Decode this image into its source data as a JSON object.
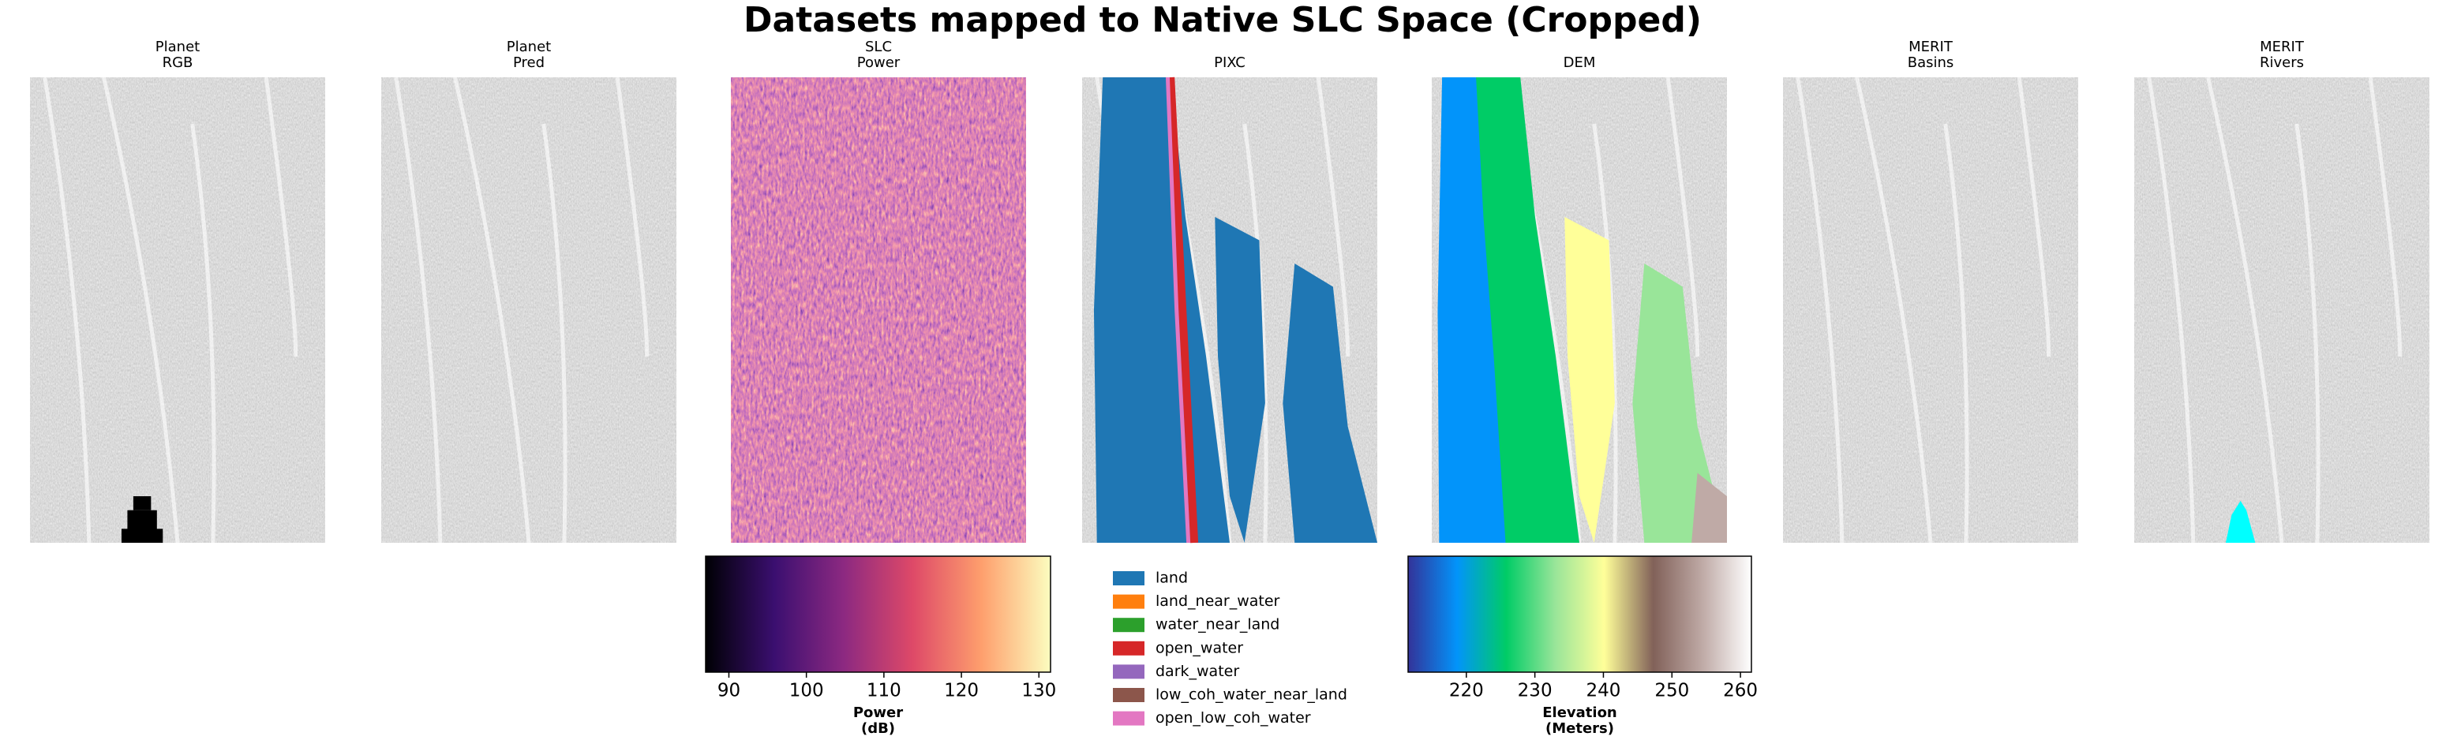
{
  "title": "Datasets mapped to Native SLC Space (Cropped)",
  "panels": [
    {
      "title": [
        "Planet",
        "RGB"
      ]
    },
    {
      "title": [
        "Planet",
        "Pred"
      ]
    },
    {
      "title": [
        "SLC",
        "Power"
      ]
    },
    {
      "title": [
        "PIXC"
      ]
    },
    {
      "title": [
        "DEM"
      ]
    },
    {
      "title": [
        "MERIT",
        "Basins"
      ]
    },
    {
      "title": [
        "MERIT",
        "Rivers"
      ]
    }
  ],
  "colorbars": [
    {
      "label": [
        "Power",
        "(dB)"
      ],
      "lim": [
        87,
        131.5
      ],
      "ticks": [
        90,
        100,
        110,
        120,
        130
      ],
      "colors": [
        "#000004",
        "#3b0f70",
        "#8c2981",
        "#de4968",
        "#fe9f6d",
        "#fcfdbf"
      ]
    },
    {
      "label": [
        "Elevation",
        "(Meters)"
      ],
      "lim": [
        211.5,
        261.6
      ],
      "ticks": [
        220,
        230,
        240,
        250,
        260
      ],
      "colors": [
        "#333399",
        "#0294fa",
        "#00cc66",
        "#99e599",
        "#ffff99",
        "#816159",
        "#bfaaa6",
        "#ffffff"
      ]
    }
  ],
  "legend": [
    {
      "name": "land",
      "color": "#1f77b4"
    },
    {
      "name": "land_near_water",
      "color": "#ff7f0e"
    },
    {
      "name": "water_near_land",
      "color": "#2ca02c"
    },
    {
      "name": "open_water",
      "color": "#d62728"
    },
    {
      "name": "dark_water",
      "color": "#9467bd"
    },
    {
      "name": "low_coh_water_near_land",
      "color": "#8c564b"
    },
    {
      "name": "open_low_coh_water",
      "color": "#e377c2"
    }
  ]
}
